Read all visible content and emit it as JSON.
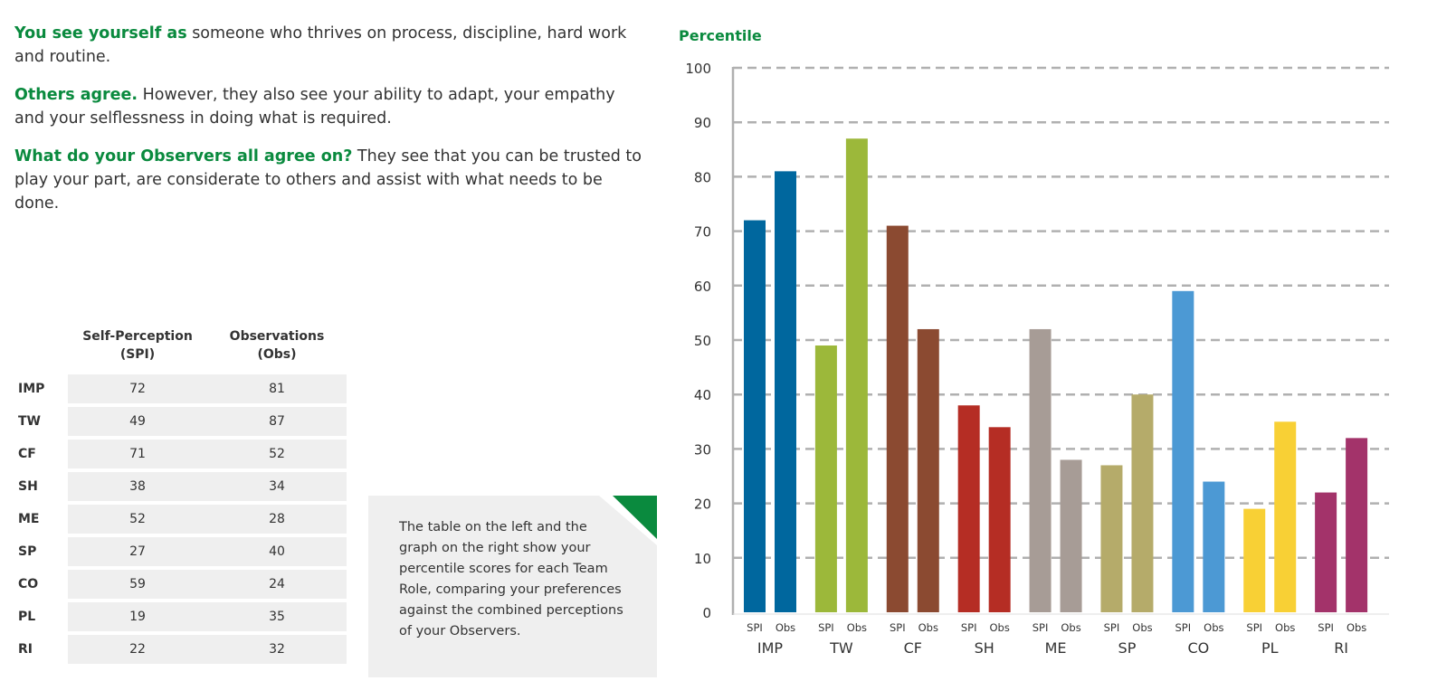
{
  "text": [
    {
      "lead": "You see yourself as",
      "rest": " someone who thrives on process, discipline, hard work and routine."
    },
    {
      "lead": "Others agree.",
      "rest": " However, they also see your ability to adapt, your empathy and your selflessness in doing what is required."
    },
    {
      "lead": "What do your Observers all agree on?",
      "rest": " They see that you can be trusted to play your part, are considerate to others and assist with what needs to be done."
    }
  ],
  "table": {
    "headers": [
      "Self-Perception (SPI)",
      "Observations (Obs)"
    ],
    "rows": [
      {
        "role": "IMP",
        "spi": "72",
        "obs": "81"
      },
      {
        "role": "TW",
        "spi": "49",
        "obs": "87"
      },
      {
        "role": "CF",
        "spi": "71",
        "obs": "52"
      },
      {
        "role": "SH",
        "spi": "38",
        "obs": "34"
      },
      {
        "role": "ME",
        "spi": "52",
        "obs": "28"
      },
      {
        "role": "SP",
        "spi": "27",
        "obs": "40"
      },
      {
        "role": "CO",
        "spi": "59",
        "obs": "24"
      },
      {
        "role": "PL",
        "spi": "19",
        "obs": "35"
      },
      {
        "role": "RI",
        "spi": "22",
        "obs": "32"
      }
    ]
  },
  "note": "The table on the left and the graph on the right show your percentile scores for each Team Role, comparing your preferences against the combined perceptions of your Observers.",
  "chart_data": {
    "type": "bar",
    "ylabel": "Percentile",
    "ylim": [
      0,
      100
    ],
    "yticks": [
      0,
      10,
      20,
      30,
      40,
      50,
      60,
      70,
      80,
      90,
      100
    ],
    "grid": "dashed horizontal",
    "categories": [
      "IMP",
      "TW",
      "CF",
      "SH",
      "ME",
      "SP",
      "CO",
      "PL",
      "RI"
    ],
    "sub_labels": [
      "SPI",
      "Obs"
    ],
    "spi": [
      72,
      49,
      71,
      38,
      52,
      27,
      59,
      19,
      22
    ],
    "obs": [
      81,
      87,
      52,
      34,
      28,
      40,
      24,
      35,
      32
    ],
    "colors": [
      "#00679e",
      "#9cb83a",
      "#8b4a31",
      "#b52d24",
      "#a79c96",
      "#b5ab6a",
      "#4c99d4",
      "#f8d035",
      "#a3336a"
    ],
    "accent": "#0a8a3e"
  }
}
